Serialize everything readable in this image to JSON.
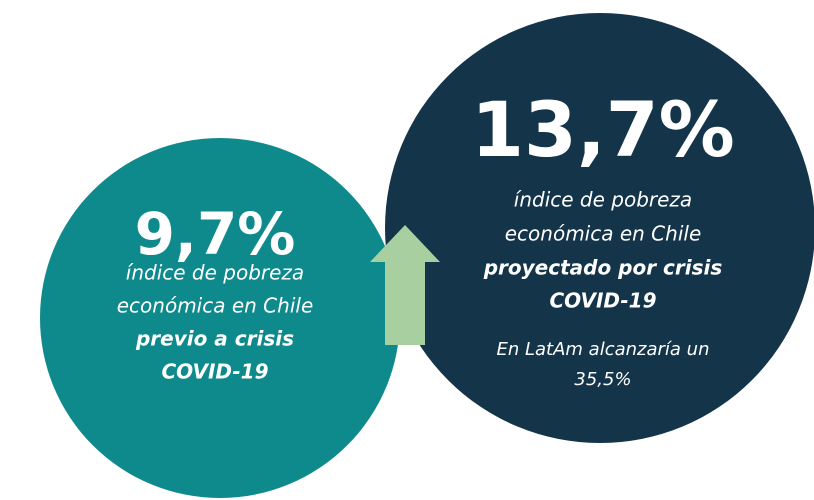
{
  "circles": [
    {
      "headline": "9,7%",
      "description": [
        "índice de pobreza",
        "económica en Chile"
      ],
      "emphasis": [
        "previo a crisis",
        "COVID-19"
      ]
    },
    {
      "headline": "13,7%",
      "description": [
        "índice de pobreza",
        "económica en Chile"
      ],
      "emphasis": [
        "proyectado por crisis",
        "COVID-19"
      ],
      "note": [
        "En LatAm alcanzaría un",
        "35,5%"
      ]
    }
  ]
}
